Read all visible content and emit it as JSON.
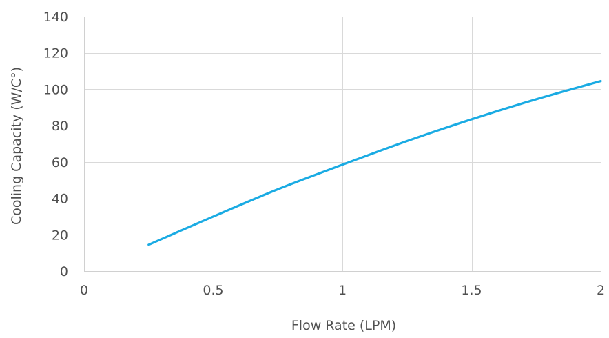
{
  "chart_data": {
    "type": "line",
    "title": "",
    "xlabel": "Flow Rate (LPM)",
    "ylabel": "Cooling Capacity (W/C°)",
    "xlim": [
      0,
      2
    ],
    "ylim": [
      0,
      140
    ],
    "xticks": [
      0,
      0.5,
      1,
      1.5,
      2
    ],
    "xtick_labels": [
      "0",
      "0.5",
      "1",
      "1.5",
      "2"
    ],
    "yticks": [
      0,
      20,
      40,
      60,
      80,
      100,
      120,
      140
    ],
    "ytick_labels": [
      "0",
      "20",
      "40",
      "60",
      "80",
      "100",
      "120",
      "140"
    ],
    "grid": true,
    "legend": "none",
    "series": [
      {
        "color": "#1aabe3",
        "x": [
          0.25,
          0.5,
          0.75,
          1.0,
          1.25,
          1.5,
          1.75,
          2.0
        ],
        "y": [
          14.5,
          30,
          45,
          58.5,
          71.5,
          83.5,
          94.5,
          104.5
        ]
      }
    ]
  }
}
